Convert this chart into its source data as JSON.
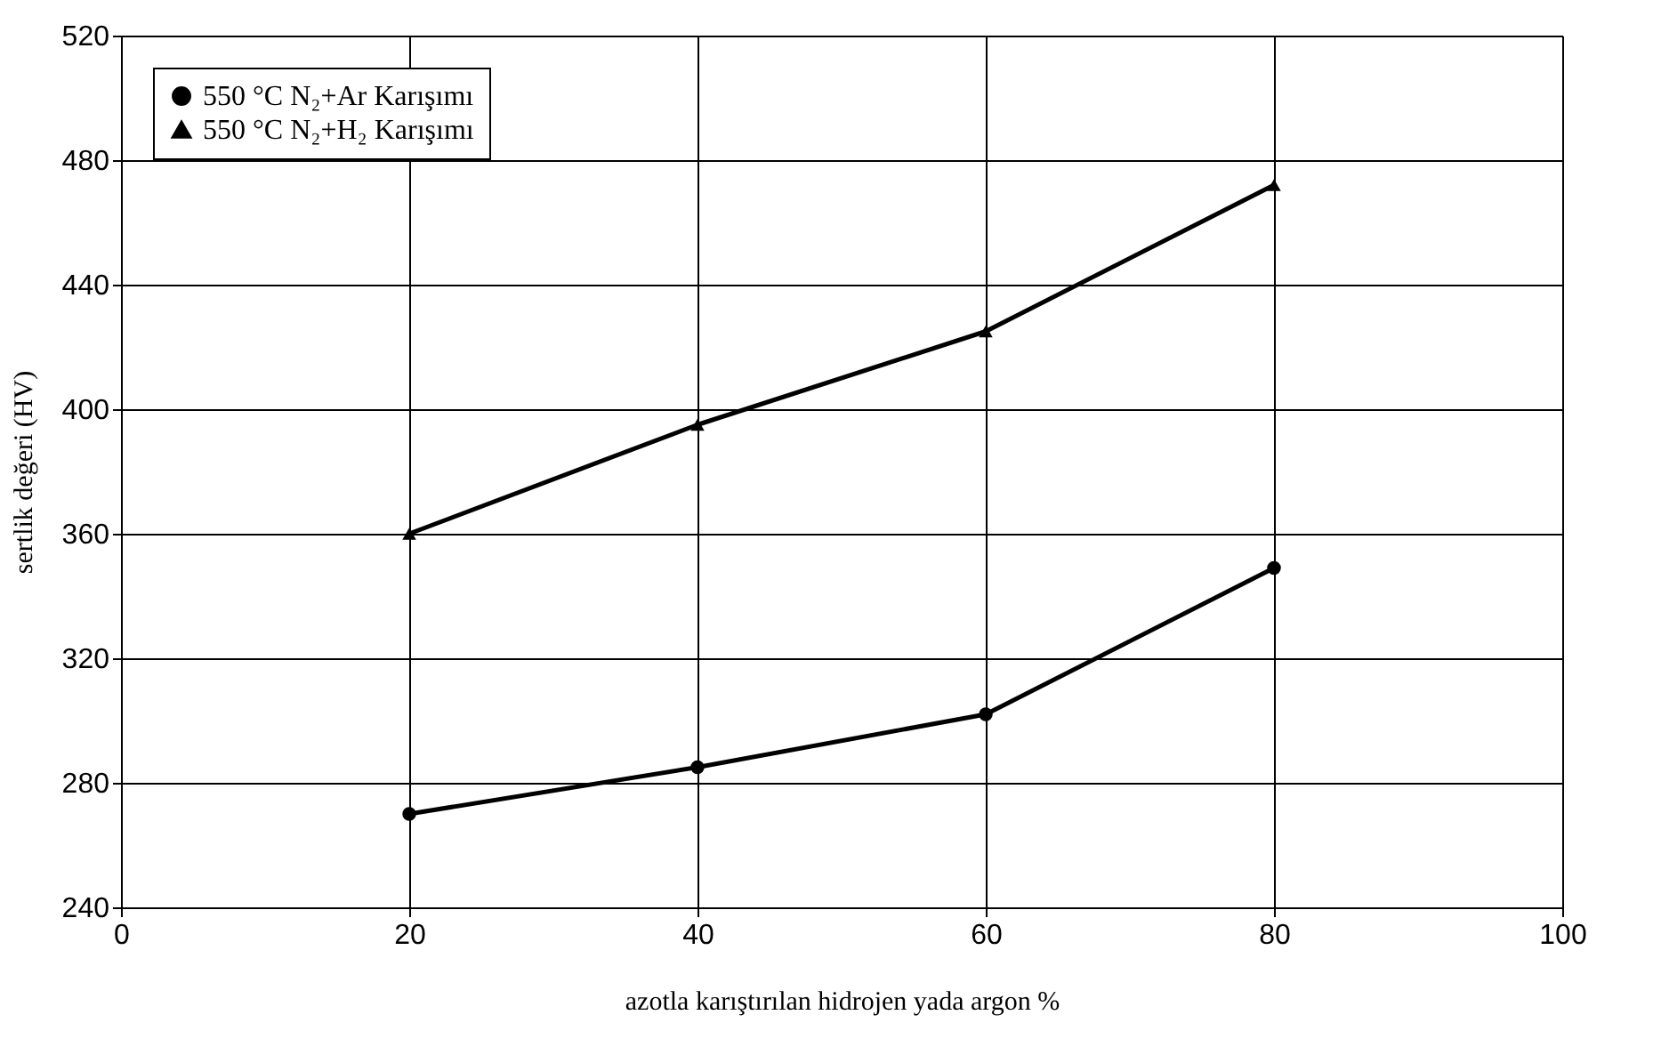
{
  "chart_data": {
    "type": "line",
    "xlabel": "azotla karıştırılan hidrojen yada argon  %",
    "ylabel": "sertlik değeri (HV)",
    "x": [
      20,
      40,
      60,
      80
    ],
    "series": [
      {
        "name": "550 °C N₂+Ar Karışımı",
        "color": "#000000",
        "marker": "circle",
        "values": [
          270,
          285,
          302,
          349
        ]
      },
      {
        "name": "550 °C N₂+H₂ Karışımı",
        "color": "#000000",
        "marker": "triangle",
        "values": [
          360,
          395,
          425,
          472
        ]
      }
    ],
    "xlim": [
      0,
      100
    ],
    "xticks": [
      0,
      20,
      40,
      60,
      80,
      100
    ],
    "ylim": [
      240,
      520
    ],
    "yticks": [
      240,
      280,
      320,
      360,
      400,
      440,
      480,
      520
    ],
    "grid": true,
    "legend": "top left",
    "line_style": "solid"
  }
}
